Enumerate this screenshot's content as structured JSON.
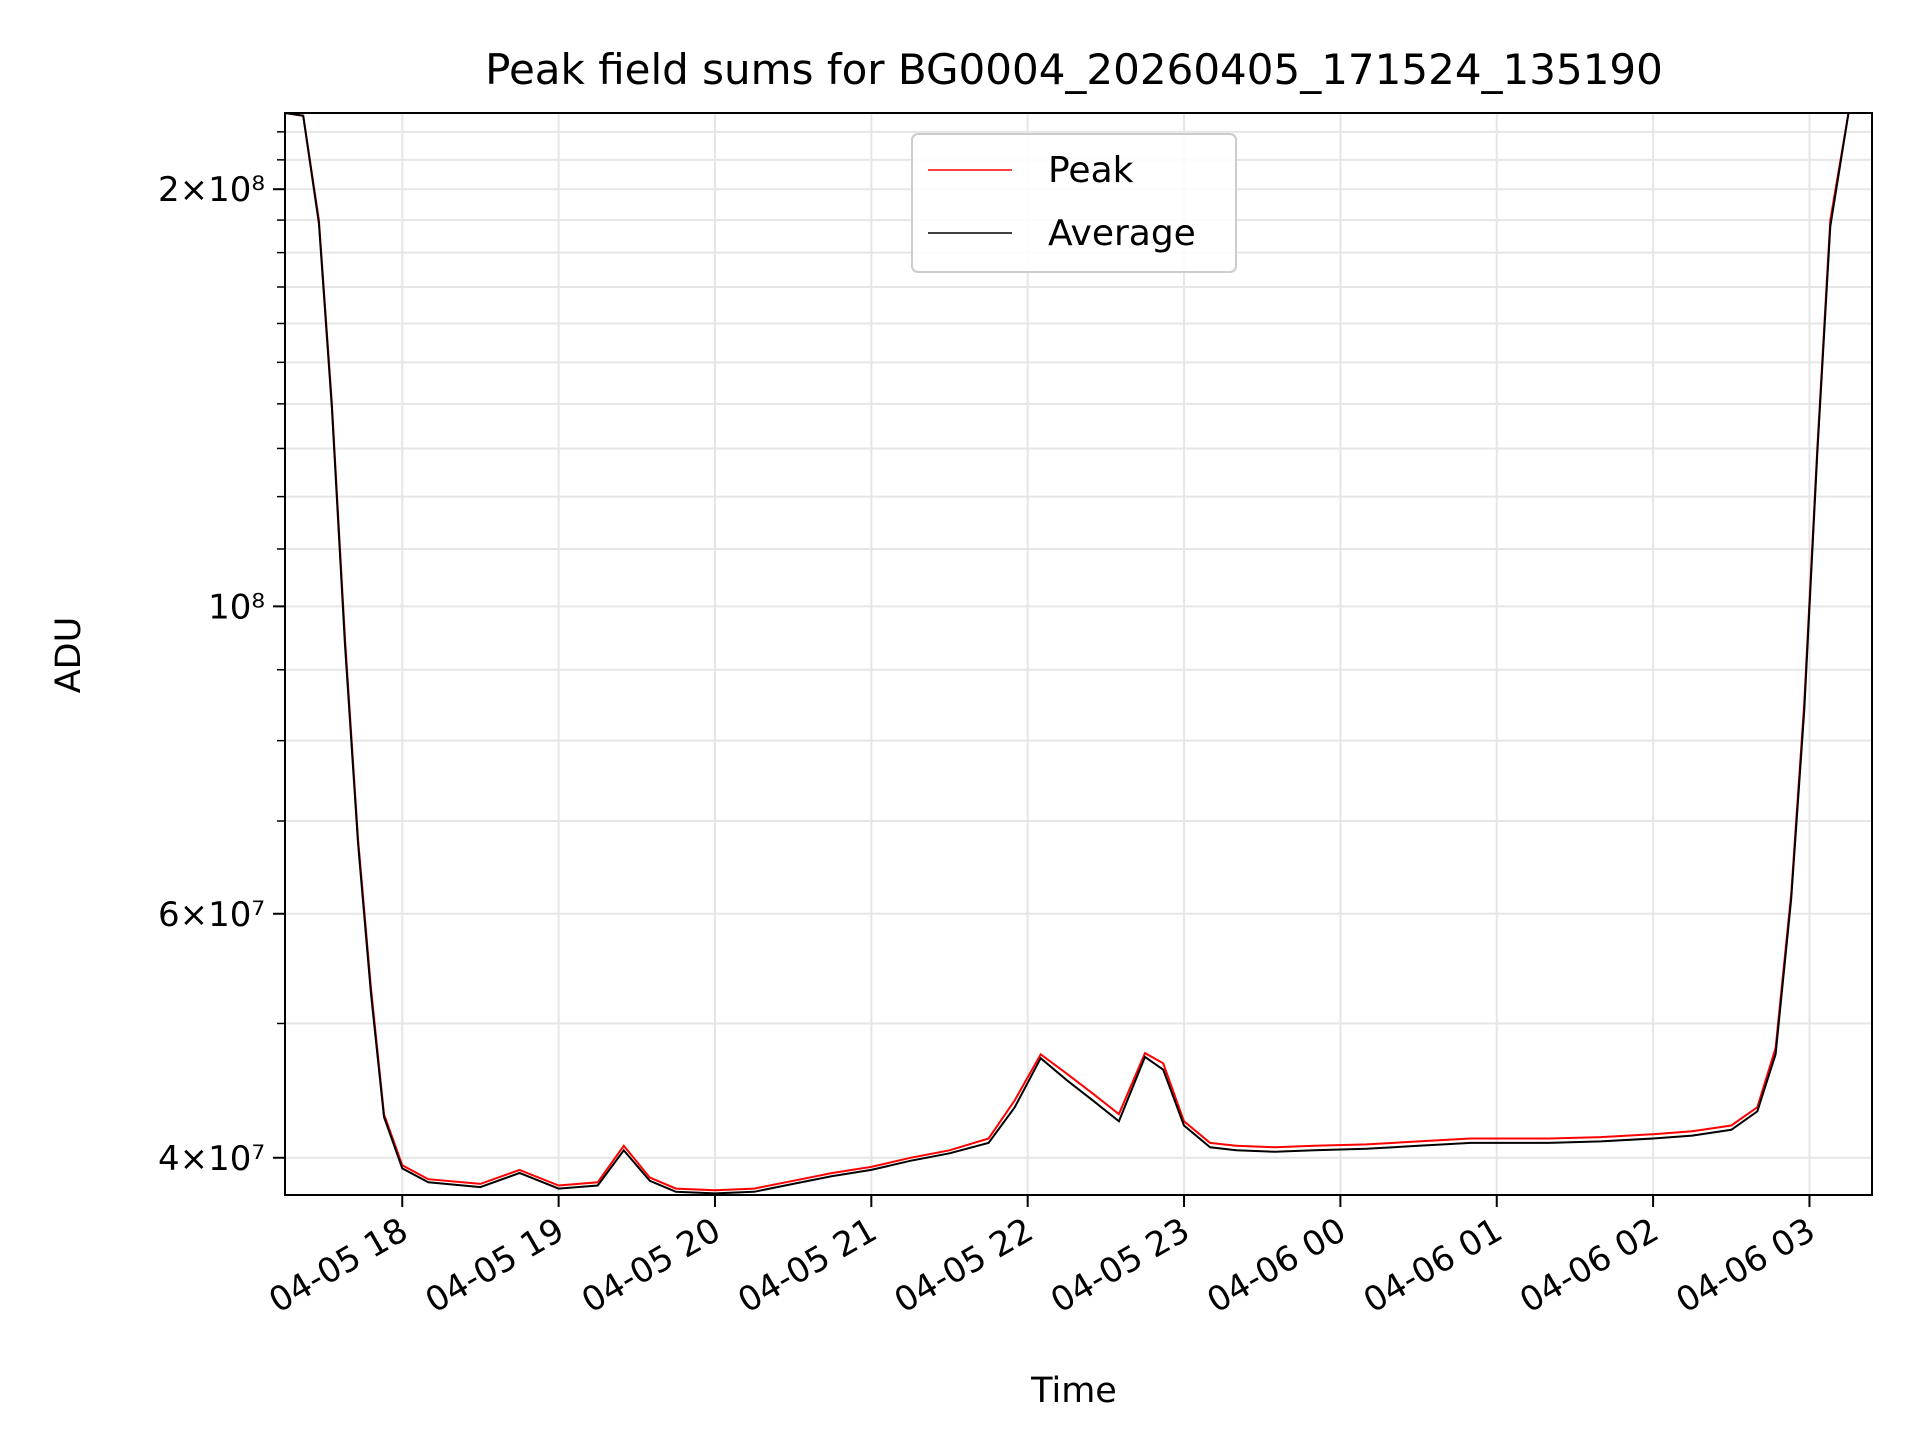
{
  "chart_data": {
    "type": "line",
    "title": "Peak field sums for BG0004_20260405_171524_135190",
    "xlabel": "Time",
    "ylabel": "ADU",
    "y_scale": "log",
    "grid": true,
    "legend_placement": "upper center",
    "xlim": [
      "04-05 17:15",
      "04-06 03:24"
    ],
    "ylim": [
      37600000,
      227000000
    ],
    "x_ticks": [
      "04-05 18",
      "04-05 19",
      "04-05 20",
      "04-05 21",
      "04-05 22",
      "04-05 23",
      "04-06 00",
      "04-06 01",
      "04-06 02",
      "04-06 03"
    ],
    "y_ticks": [
      {
        "value": 40000000,
        "label": "4×10⁷"
      },
      {
        "value": 60000000,
        "label": "6×10⁷"
      },
      {
        "value": 100000000,
        "label": "10⁸"
      },
      {
        "value": 200000000,
        "label": "2×10⁸"
      }
    ],
    "series": [
      {
        "name": "Peak",
        "color": "#ff0000",
        "x": [
          "04-05 17:15",
          "04-05 17:22",
          "04-05 17:28",
          "04-05 17:33",
          "04-05 17:38",
          "04-05 17:43",
          "04-05 17:48",
          "04-05 17:53",
          "04-05 18:00",
          "04-05 18:10",
          "04-05 18:30",
          "04-05 18:45",
          "04-05 19:00",
          "04-05 19:15",
          "04-05 19:25",
          "04-05 19:35",
          "04-05 19:45",
          "04-05 20:00",
          "04-05 20:15",
          "04-05 20:30",
          "04-05 20:45",
          "04-05 21:00",
          "04-05 21:15",
          "04-05 21:30",
          "04-05 21:45",
          "04-05 21:55",
          "04-05 22:05",
          "04-05 22:15",
          "04-05 22:25",
          "04-05 22:35",
          "04-05 22:45",
          "04-05 22:52",
          "04-05 23:00",
          "04-05 23:10",
          "04-05 23:20",
          "04-05 23:35",
          "04-05 23:50",
          "04-06 00:10",
          "04-06 00:30",
          "04-06 00:50",
          "04-06 01:05",
          "04-06 01:20",
          "04-06 01:40",
          "04-06 02:00",
          "04-06 02:15",
          "04-06 02:30",
          "04-06 02:40",
          "04-06 02:47",
          "04-06 02:53",
          "04-06 02:58",
          "04-06 03:03",
          "04-06 03:08",
          "04-06 03:15",
          "04-06 03:24"
        ],
        "y": [
          227000000,
          226000000,
          190000000,
          140000000,
          95000000,
          68000000,
          53000000,
          43000000,
          39500000,
          38600000,
          38300000,
          39200000,
          38200000,
          38400000,
          40800000,
          38700000,
          38000000,
          37900000,
          38000000,
          38500000,
          39000000,
          39400000,
          40000000,
          40500000,
          41300000,
          44000000,
          47500000,
          46000000,
          44500000,
          43000000,
          47600000,
          46800000,
          42500000,
          41000000,
          40800000,
          40700000,
          40800000,
          40900000,
          41100000,
          41300000,
          41300000,
          41300000,
          41400000,
          41600000,
          41800000,
          42200000,
          43500000,
          48000000,
          62000000,
          85000000,
          130000000,
          190000000,
          227000000,
          227000000
        ]
      },
      {
        "name": "Average",
        "color": "#000000",
        "x": [
          "04-05 17:15",
          "04-05 17:22",
          "04-05 17:28",
          "04-05 17:33",
          "04-05 17:38",
          "04-05 17:43",
          "04-05 17:48",
          "04-05 17:53",
          "04-05 18:00",
          "04-05 18:10",
          "04-05 18:30",
          "04-05 18:45",
          "04-05 19:00",
          "04-05 19:15",
          "04-05 19:25",
          "04-05 19:35",
          "04-05 19:45",
          "04-05 20:00",
          "04-05 20:15",
          "04-05 20:30",
          "04-05 20:45",
          "04-05 21:00",
          "04-05 21:15",
          "04-05 21:30",
          "04-05 21:45",
          "04-05 21:55",
          "04-05 22:05",
          "04-05 22:15",
          "04-05 22:25",
          "04-05 22:35",
          "04-05 22:45",
          "04-05 22:52",
          "04-05 23:00",
          "04-05 23:10",
          "04-05 23:20",
          "04-05 23:35",
          "04-05 23:50",
          "04-06 00:10",
          "04-06 00:30",
          "04-06 00:50",
          "04-06 01:05",
          "04-06 01:20",
          "04-06 01:40",
          "04-06 02:00",
          "04-06 02:15",
          "04-06 02:30",
          "04-06 02:40",
          "04-06 02:47",
          "04-06 02:53",
          "04-06 02:58",
          "04-06 03:03",
          "04-06 03:08",
          "04-06 03:15",
          "04-06 03:24"
        ],
        "y": [
          227000000,
          226000000,
          189000000,
          139000000,
          94000000,
          67500000,
          52500000,
          42800000,
          39300000,
          38400000,
          38100000,
          39000000,
          38000000,
          38200000,
          40500000,
          38500000,
          37800000,
          37700000,
          37800000,
          38300000,
          38800000,
          39200000,
          39800000,
          40300000,
          41000000,
          43500000,
          47200000,
          45500000,
          44000000,
          42500000,
          47300000,
          46300000,
          42200000,
          40700000,
          40500000,
          40400000,
          40500000,
          40600000,
          40800000,
          41000000,
          41000000,
          41000000,
          41100000,
          41300000,
          41500000,
          41900000,
          43200000,
          47500000,
          61500000,
          84000000,
          129000000,
          188000000,
          227000000,
          227000000
        ]
      }
    ]
  }
}
